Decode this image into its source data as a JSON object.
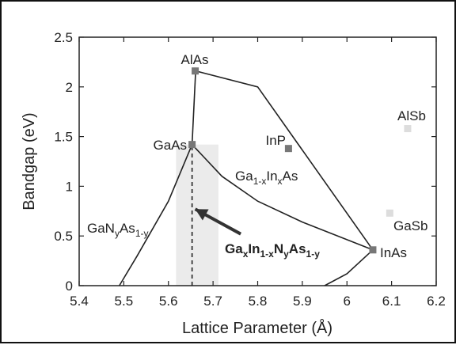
{
  "chart_data": {
    "type": "scatter",
    "xlabel": "Lattice Parameter (Å)",
    "ylabel": "Bandgap (eV)",
    "xlim": [
      5.4,
      6.2
    ],
    "ylim": [
      0,
      2.5
    ],
    "xticks": [
      "5.4",
      "5.5",
      "5.6",
      "5.7",
      "5.8",
      "5.9",
      "6",
      "6.1",
      "6.2"
    ],
    "yticks": [
      "0",
      "0.5",
      "1",
      "1.5",
      "2",
      "2.5"
    ],
    "grid": false,
    "points": [
      {
        "name": "AlAs",
        "x": 5.66,
        "y": 2.16,
        "color": "#777777"
      },
      {
        "name": "GaAs",
        "x": 5.653,
        "y": 1.42,
        "color": "#777777"
      },
      {
        "name": "InP",
        "x": 5.869,
        "y": 1.38,
        "color": "#777777"
      },
      {
        "name": "InAs",
        "x": 6.058,
        "y": 0.36,
        "color": "#777777"
      },
      {
        "name": "AlSb",
        "x": 6.136,
        "y": 1.58,
        "color": "#dddddd"
      },
      {
        "name": "GaSb",
        "x": 6.096,
        "y": 0.73,
        "color": "#dddddd"
      }
    ],
    "curves": [
      {
        "name": "AlAs-GaAs",
        "points": [
          [
            5.661,
            2.16
          ],
          [
            5.653,
            1.42
          ]
        ]
      },
      {
        "name": "AlAs-InAs",
        "points": [
          [
            5.661,
            2.16
          ],
          [
            5.8,
            2.0
          ],
          [
            6.058,
            0.36
          ]
        ]
      },
      {
        "name": "Ga1-xInxAs",
        "points": [
          [
            5.653,
            1.42
          ],
          [
            5.72,
            1.1
          ],
          [
            5.8,
            0.85
          ],
          [
            5.9,
            0.64
          ],
          [
            6.058,
            0.36
          ]
        ]
      },
      {
        "name": "GaNyAs1-y",
        "points": [
          [
            5.653,
            1.42
          ],
          [
            5.6,
            0.85
          ],
          [
            5.53,
            0.3
          ],
          [
            5.49,
            0.0
          ]
        ]
      },
      {
        "name": "InAs-lower",
        "points": [
          [
            6.058,
            0.36
          ],
          [
            6.0,
            0.12
          ],
          [
            5.95,
            0.0
          ]
        ]
      }
    ],
    "shaded_region": {
      "x": [
        5.617,
        5.712
      ],
      "y": [
        0,
        1.42
      ],
      "color": "#ebebeb"
    },
    "dashed_line": {
      "x": 5.653,
      "y": [
        0,
        1.42
      ]
    },
    "arrow": {
      "from": [
        5.762,
        0.52
      ],
      "to": [
        5.66,
        0.77
      ]
    },
    "annotations": [
      {
        "key": "alas",
        "text": "AlAs",
        "x": 5.66,
        "y": 2.16
      },
      {
        "key": "gaas",
        "text": "GaAs",
        "x": 5.653,
        "y": 1.42
      },
      {
        "key": "inp",
        "text": "InP",
        "x": 5.869,
        "y": 1.38
      },
      {
        "key": "inas",
        "text": "InAs",
        "x": 6.058,
        "y": 0.36
      },
      {
        "key": "alsb",
        "text": "AlSb",
        "x": 6.136,
        "y": 1.58
      },
      {
        "key": "gasb",
        "text": "GaSb",
        "x": 6.096,
        "y": 0.73
      }
    ],
    "curve_labels": {
      "gainas": {
        "base1": "Ga",
        "sub1": "1-x",
        "base2": "In",
        "sub2": "x",
        "base3": "As"
      },
      "ganas": {
        "base1": "GaN",
        "sub1": "y",
        "base2": "As",
        "sub2": "1-y"
      },
      "gainnas": {
        "base1": "Ga",
        "sub1": "x",
        "base2": "In",
        "sub2": "1-x",
        "base3": "N",
        "sub3": "y",
        "base4": "As",
        "sub4": "1-y"
      }
    }
  }
}
